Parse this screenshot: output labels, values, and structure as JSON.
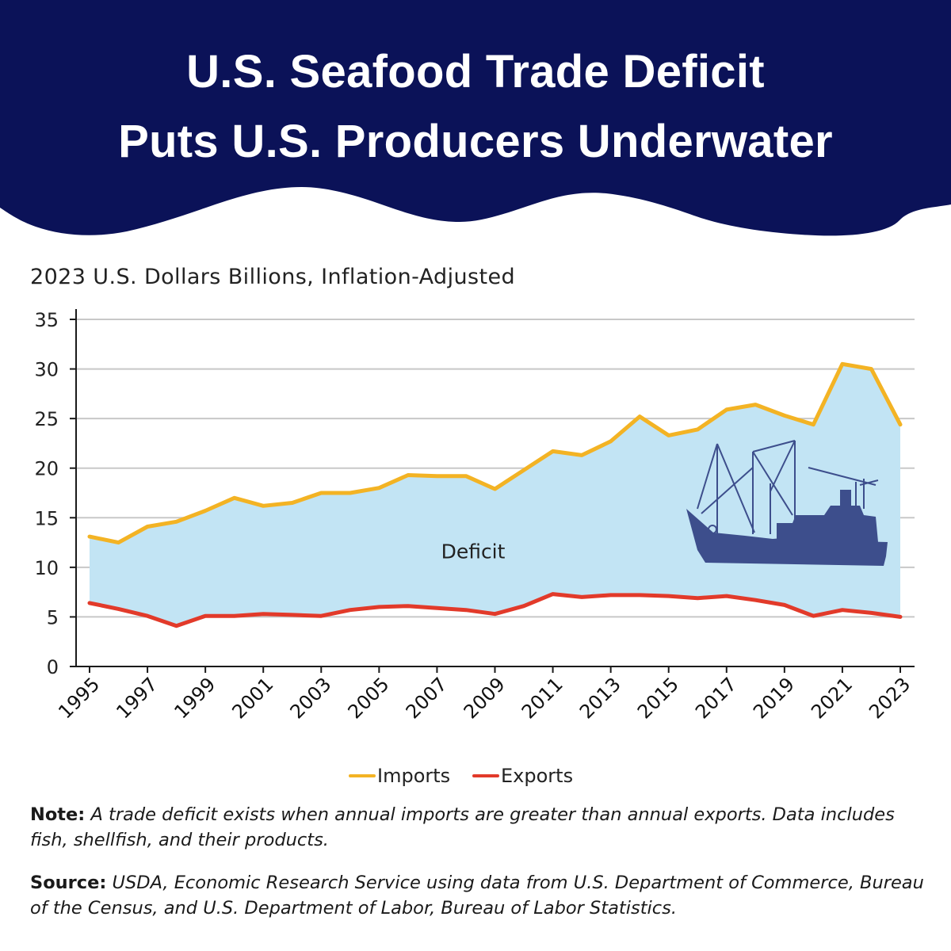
{
  "header": {
    "title_line1": "U.S. Seafood Trade Deficit",
    "title_line2": "Puts U.S. Producers Underwater",
    "background_color": "#0b1258"
  },
  "unit_label": "2023 U.S. Dollars Billions, Inflation-Adjusted",
  "chart_data": {
    "type": "area",
    "title": "U.S. Seafood Trade Deficit",
    "ylabel": "2023 U.S. Dollars Billions, Inflation-Adjusted",
    "xlabel": "",
    "ylim": [
      0,
      35
    ],
    "yticks": [
      0,
      5,
      10,
      15,
      20,
      25,
      30,
      35
    ],
    "grid": true,
    "x": [
      1995,
      1996,
      1997,
      1998,
      1999,
      2000,
      2001,
      2002,
      2003,
      2004,
      2005,
      2006,
      2007,
      2008,
      2009,
      2010,
      2011,
      2012,
      2013,
      2014,
      2015,
      2016,
      2017,
      2018,
      2019,
      2020,
      2021,
      2022,
      2023
    ],
    "xtick_labels": [
      "1995",
      "1997",
      "1999",
      "2001",
      "2003",
      "2005",
      "2007",
      "2009",
      "2011",
      "2013",
      "2015",
      "2017",
      "2019",
      "2021",
      "2023"
    ],
    "series": [
      {
        "name": "Imports",
        "color": "#f3b324",
        "values": [
          13.1,
          12.5,
          14.1,
          14.6,
          15.7,
          17.0,
          16.2,
          16.5,
          17.5,
          17.5,
          18.0,
          19.3,
          19.2,
          19.2,
          17.9,
          19.8,
          21.7,
          21.3,
          22.7,
          25.2,
          23.3,
          23.9,
          25.9,
          26.4,
          25.3,
          24.4,
          30.5,
          30.0,
          24.4
        ]
      },
      {
        "name": "Exports",
        "color": "#e23a2a",
        "values": [
          6.4,
          5.8,
          5.1,
          4.1,
          5.1,
          5.1,
          5.3,
          5.2,
          5.1,
          5.7,
          6.0,
          6.1,
          5.9,
          5.7,
          5.3,
          6.1,
          7.3,
          7.0,
          7.2,
          7.2,
          7.1,
          6.9,
          7.1,
          6.7,
          6.2,
          5.1,
          5.7,
          5.4,
          5.0
        ]
      }
    ],
    "fill_between": {
      "label": "Deficit",
      "color": "#c2e4f4"
    },
    "legend": "bottom-center"
  },
  "legend": {
    "imports_label": "Imports",
    "exports_label": "Exports"
  },
  "note": {
    "label": "Note:",
    "text": "A trade deficit exists when annual imports are greater than annual exports. Data includes fish, shellfish, and their products."
  },
  "source": {
    "label": "Source:",
    "text": "USDA, Economic Research Service using data from U.S. Department of Commerce, Bureau of the Census, and U.S. Department of Labor, Bureau of Labor Statistics."
  },
  "icons": {
    "boat": "fishing-boat-icon"
  },
  "colors": {
    "boat": "#3d4e8c",
    "axis": "#1a1a1a",
    "grid": "#c8c8c8"
  }
}
